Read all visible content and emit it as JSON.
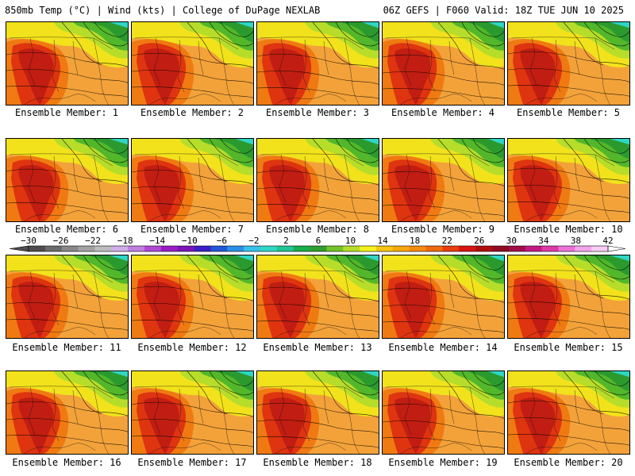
{
  "header": {
    "left": "850mb Temp (°C) | Wind (kts) | College of DuPage NEXLAB",
    "right": "06Z GEFS | F060 Valid: 18Z TUE JUN 10 2025"
  },
  "members": [
    {
      "label": "Ensemble Member: 1"
    },
    {
      "label": "Ensemble Member: 2"
    },
    {
      "label": "Ensemble Member: 3"
    },
    {
      "label": "Ensemble Member: 4"
    },
    {
      "label": "Ensemble Member: 5"
    },
    {
      "label": "Ensemble Member: 6"
    },
    {
      "label": "Ensemble Member: 7"
    },
    {
      "label": "Ensemble Member: 8"
    },
    {
      "label": "Ensemble Member: 9"
    },
    {
      "label": "Ensemble Member: 10"
    },
    {
      "label": "Ensemble Member: 11"
    },
    {
      "label": "Ensemble Member: 12"
    },
    {
      "label": "Ensemble Member: 13"
    },
    {
      "label": "Ensemble Member: 14"
    },
    {
      "label": "Ensemble Member: 15"
    },
    {
      "label": "Ensemble Member: 16"
    },
    {
      "label": "Ensemble Member: 17"
    },
    {
      "label": "Ensemble Member: 18"
    },
    {
      "label": "Ensemble Member: 19"
    },
    {
      "label": "Ensemble Member: 20"
    }
  ],
  "colorbar": {
    "ticks": [
      "−30",
      "−26",
      "−22",
      "−18",
      "−14",
      "−10",
      "−6",
      "−2",
      "2",
      "6",
      "10",
      "14",
      "18",
      "22",
      "26",
      "30",
      "34",
      "38",
      "42"
    ],
    "colors": [
      "#4d4d4d",
      "#6b6b6b",
      "#888888",
      "#a2a2a2",
      "#bdbdbd",
      "#d0aee8",
      "#c07ee0",
      "#b04ad6",
      "#9a1cc4",
      "#7a16b8",
      "#3b1ec6",
      "#2457d8",
      "#2b8fe6",
      "#39c0e8",
      "#2fd6c4",
      "#22c493",
      "#18ae4b",
      "#2f9f2d",
      "#73c22a",
      "#b6dd2a",
      "#f4f21d",
      "#f7c412",
      "#f6a70e",
      "#f48a10",
      "#f06a10",
      "#ea3d0f",
      "#d81512",
      "#b00e0e",
      "#900c22",
      "#a20e4a",
      "#c21a82",
      "#de3aa8",
      "#ec72d6",
      "#f2a6ec",
      "#f7ccf4"
    ]
  },
  "map_colors": {
    "hot": "#c11d12",
    "warm_red": "#de3410",
    "orange": "#f07a12",
    "light_orange": "#f3a23a",
    "yellow": "#f2e21b",
    "yellow_green": "#b6dd2a",
    "green": "#52b72a",
    "dark_green": "#2b9a2e",
    "teal": "#2fd6c4"
  }
}
